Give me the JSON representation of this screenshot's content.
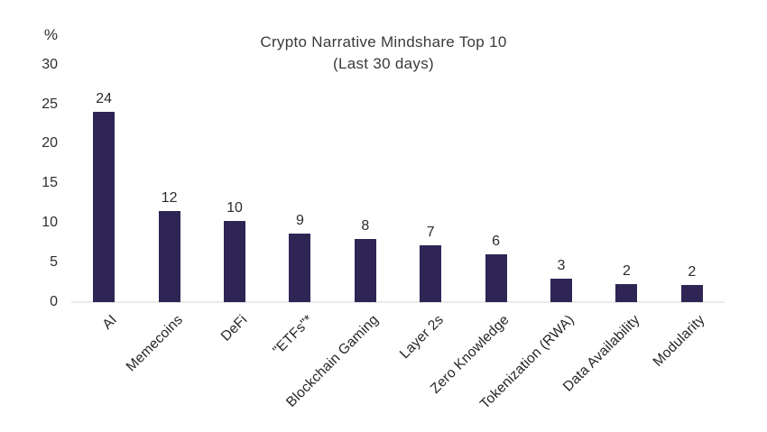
{
  "chart_data": {
    "type": "bar",
    "title": "Crypto Narrative Mindshare Top 10",
    "subtitle": "(Last 30 days)",
    "ylabel": "%",
    "ylim": [
      0,
      30
    ],
    "yticks": [
      30,
      25,
      20,
      15,
      10,
      5,
      0
    ],
    "grid": false,
    "legend": false,
    "categories": [
      "AI",
      "Memecoins",
      "DeFi",
      "\"ETFs\"*",
      "Blockchain Gaming",
      "Layer 2s",
      "Zero Knowledge",
      "Tokenization (RWA)",
      "Data Availability",
      "Modularity"
    ],
    "values": [
      24,
      12,
      10,
      9,
      8,
      7,
      6,
      3,
      2,
      2
    ],
    "rendered_values": [
      24,
      11.5,
      10.3,
      8.6,
      8.0,
      7.2,
      6.0,
      3.0,
      2.3,
      2.2
    ],
    "bar_color": "#2F2555",
    "axis_line_color": "#EAEAEA",
    "text_color": "#2E2E2E",
    "background_color": "#FFFFFF"
  }
}
